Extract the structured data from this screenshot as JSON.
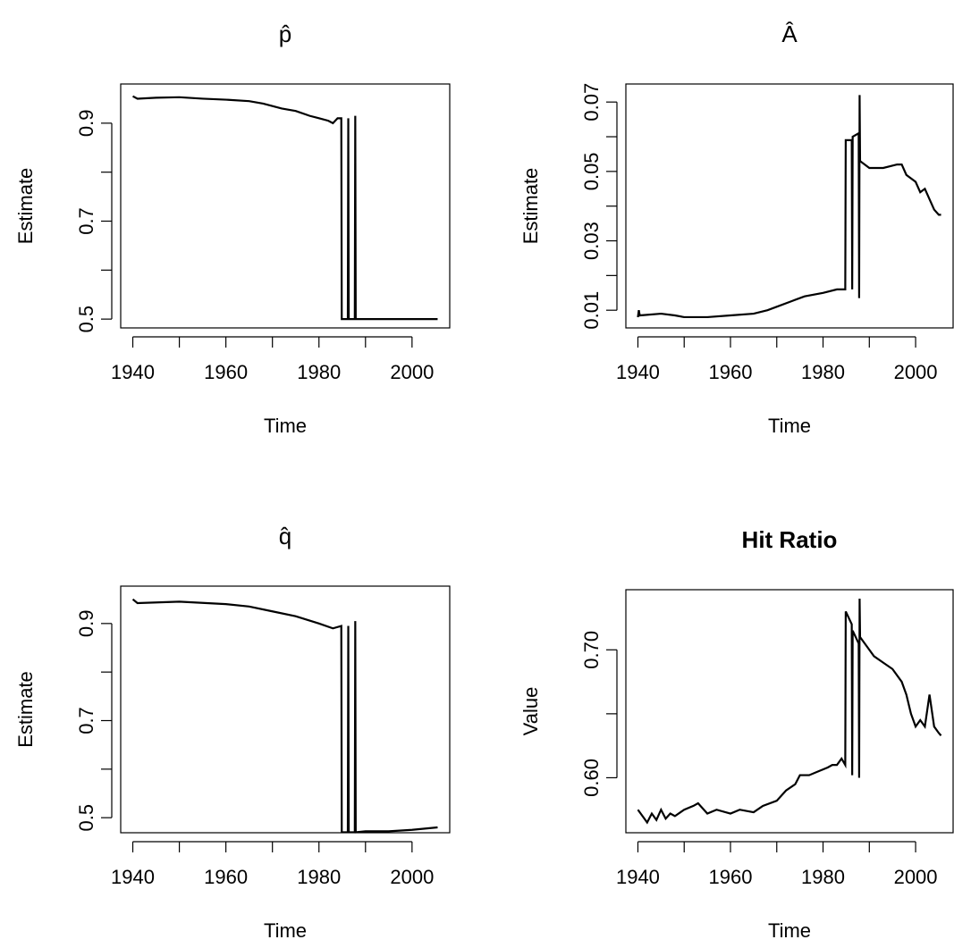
{
  "chart_data": [
    {
      "type": "line",
      "title": "p̂",
      "xlabel": "Time",
      "ylabel": "Estimate",
      "color": "#000000",
      "x": [
        1940,
        1941,
        1945,
        1950,
        1955,
        1960,
        1965,
        1968,
        1970,
        1972,
        1975,
        1978,
        1980,
        1982,
        1983,
        1984,
        1984.8,
        1984.9,
        1986.2,
        1986.3,
        1986.4,
        1987.7,
        1987.8,
        1987.9,
        2005.5
      ],
      "values": [
        0.955,
        0.95,
        0.952,
        0.953,
        0.95,
        0.948,
        0.945,
        0.94,
        0.935,
        0.93,
        0.925,
        0.915,
        0.91,
        0.905,
        0.9,
        0.91,
        0.91,
        0.5,
        0.5,
        0.91,
        0.5,
        0.5,
        0.915,
        0.5,
        0.5
      ],
      "xlim": [
        1937.4,
        2008.1
      ],
      "ylim": [
        0.482,
        0.98
      ],
      "xticks": [
        1940,
        1960,
        1980,
        2000
      ],
      "xminorticks": [
        1950,
        1970,
        1990
      ],
      "yticks": [
        0.5,
        0.7,
        0.9
      ],
      "yminorticks": [
        0.6,
        0.8
      ]
    },
    {
      "type": "line",
      "title": "Â",
      "xlabel": "Time",
      "ylabel": "Estimate",
      "color": "#000000",
      "x": [
        1940,
        1940.2,
        1940.4,
        1945,
        1948,
        1950,
        1955,
        1960,
        1965,
        1968,
        1970,
        1973,
        1976,
        1980,
        1983,
        1984.8,
        1984.9,
        1986.2,
        1986.3,
        1986.4,
        1987.7,
        1987.8,
        1987.9,
        1988,
        1990,
        1993,
        1996,
        1997,
        1998,
        2000,
        2001,
        2002,
        2003,
        2004,
        2005,
        2005.5
      ],
      "values": [
        0.008,
        0.01,
        0.0085,
        0.009,
        0.0085,
        0.008,
        0.008,
        0.0085,
        0.009,
        0.01,
        0.011,
        0.0125,
        0.014,
        0.015,
        0.016,
        0.016,
        0.059,
        0.059,
        0.016,
        0.06,
        0.061,
        0.0135,
        0.072,
        0.053,
        0.051,
        0.051,
        0.052,
        0.052,
        0.049,
        0.047,
        0.044,
        0.045,
        0.042,
        0.039,
        0.0375,
        0.0375
      ],
      "xlim": [
        1937.4,
        2008.1
      ],
      "ylim": [
        0.0049,
        0.0752
      ],
      "xticks": [
        1940,
        1960,
        1980,
        2000
      ],
      "xminorticks": [
        1950,
        1970,
        1990
      ],
      "yticks": [
        0.01,
        0.03,
        0.05,
        0.07
      ],
      "yminorticks": [
        0.02,
        0.04,
        0.06
      ]
    },
    {
      "type": "line",
      "title": "q̂",
      "xlabel": "Time",
      "ylabel": "Estimate",
      "color": "#000000",
      "x": [
        1940,
        1941,
        1950,
        1960,
        1965,
        1970,
        1975,
        1980,
        1983,
        1984.8,
        1984.9,
        1986.2,
        1986.3,
        1986.4,
        1987.7,
        1987.8,
        1987.9,
        1990,
        1995,
        2000,
        2005.5
      ],
      "values": [
        0.95,
        0.942,
        0.945,
        0.94,
        0.935,
        0.925,
        0.915,
        0.9,
        0.89,
        0.895,
        0.47,
        0.47,
        0.895,
        0.47,
        0.47,
        0.905,
        0.47,
        0.472,
        0.472,
        0.475,
        0.48
      ],
      "xlim": [
        1937.4,
        2008.1
      ],
      "ylim": [
        0.469,
        0.977
      ],
      "xticks": [
        1940,
        1960,
        1980,
        2000
      ],
      "xminorticks": [
        1950,
        1970,
        1990
      ],
      "yticks": [
        0.5,
        0.7,
        0.9
      ],
      "yminorticks": [
        0.6,
        0.8
      ]
    },
    {
      "type": "line",
      "title": "Hit Ratio",
      "title_bold": true,
      "xlabel": "Time",
      "ylabel": "Value",
      "color": "#000000",
      "x": [
        1940,
        1941,
        1942,
        1943,
        1944,
        1945,
        1946,
        1947,
        1948,
        1950,
        1952,
        1953,
        1955,
        1957,
        1960,
        1962,
        1965,
        1967,
        1970,
        1972,
        1974,
        1975,
        1977,
        1979,
        1981,
        1982,
        1983,
        1984,
        1984.8,
        1984.9,
        1986.2,
        1986.3,
        1986.4,
        1987.7,
        1987.8,
        1987.9,
        1988,
        1990,
        1991,
        1993,
        1995,
        1997,
        1998,
        1999,
        2000,
        2001,
        2002,
        2003,
        2004,
        2005,
        2005.5
      ],
      "values": [
        0.575,
        0.57,
        0.565,
        0.572,
        0.567,
        0.575,
        0.568,
        0.572,
        0.57,
        0.575,
        0.578,
        0.58,
        0.572,
        0.575,
        0.572,
        0.575,
        0.573,
        0.578,
        0.582,
        0.59,
        0.595,
        0.602,
        0.602,
        0.605,
        0.608,
        0.61,
        0.61,
        0.615,
        0.61,
        0.73,
        0.72,
        0.602,
        0.715,
        0.705,
        0.6,
        0.74,
        0.71,
        0.7,
        0.695,
        0.69,
        0.685,
        0.675,
        0.665,
        0.65,
        0.64,
        0.645,
        0.64,
        0.665,
        0.64,
        0.635,
        0.633
      ],
      "xlim": [
        1937.4,
        2008.1
      ],
      "ylim": [
        0.557,
        0.747
      ],
      "xticks": [
        1940,
        1960,
        1980,
        2000
      ],
      "xminorticks": [
        1950,
        1970,
        1990
      ],
      "yticks": [
        {
          "value": 0.6,
          "label": "0.60"
        },
        {
          "value": 0.7,
          "label": "0.70"
        }
      ],
      "yminorticks": [
        0.65
      ]
    }
  ]
}
